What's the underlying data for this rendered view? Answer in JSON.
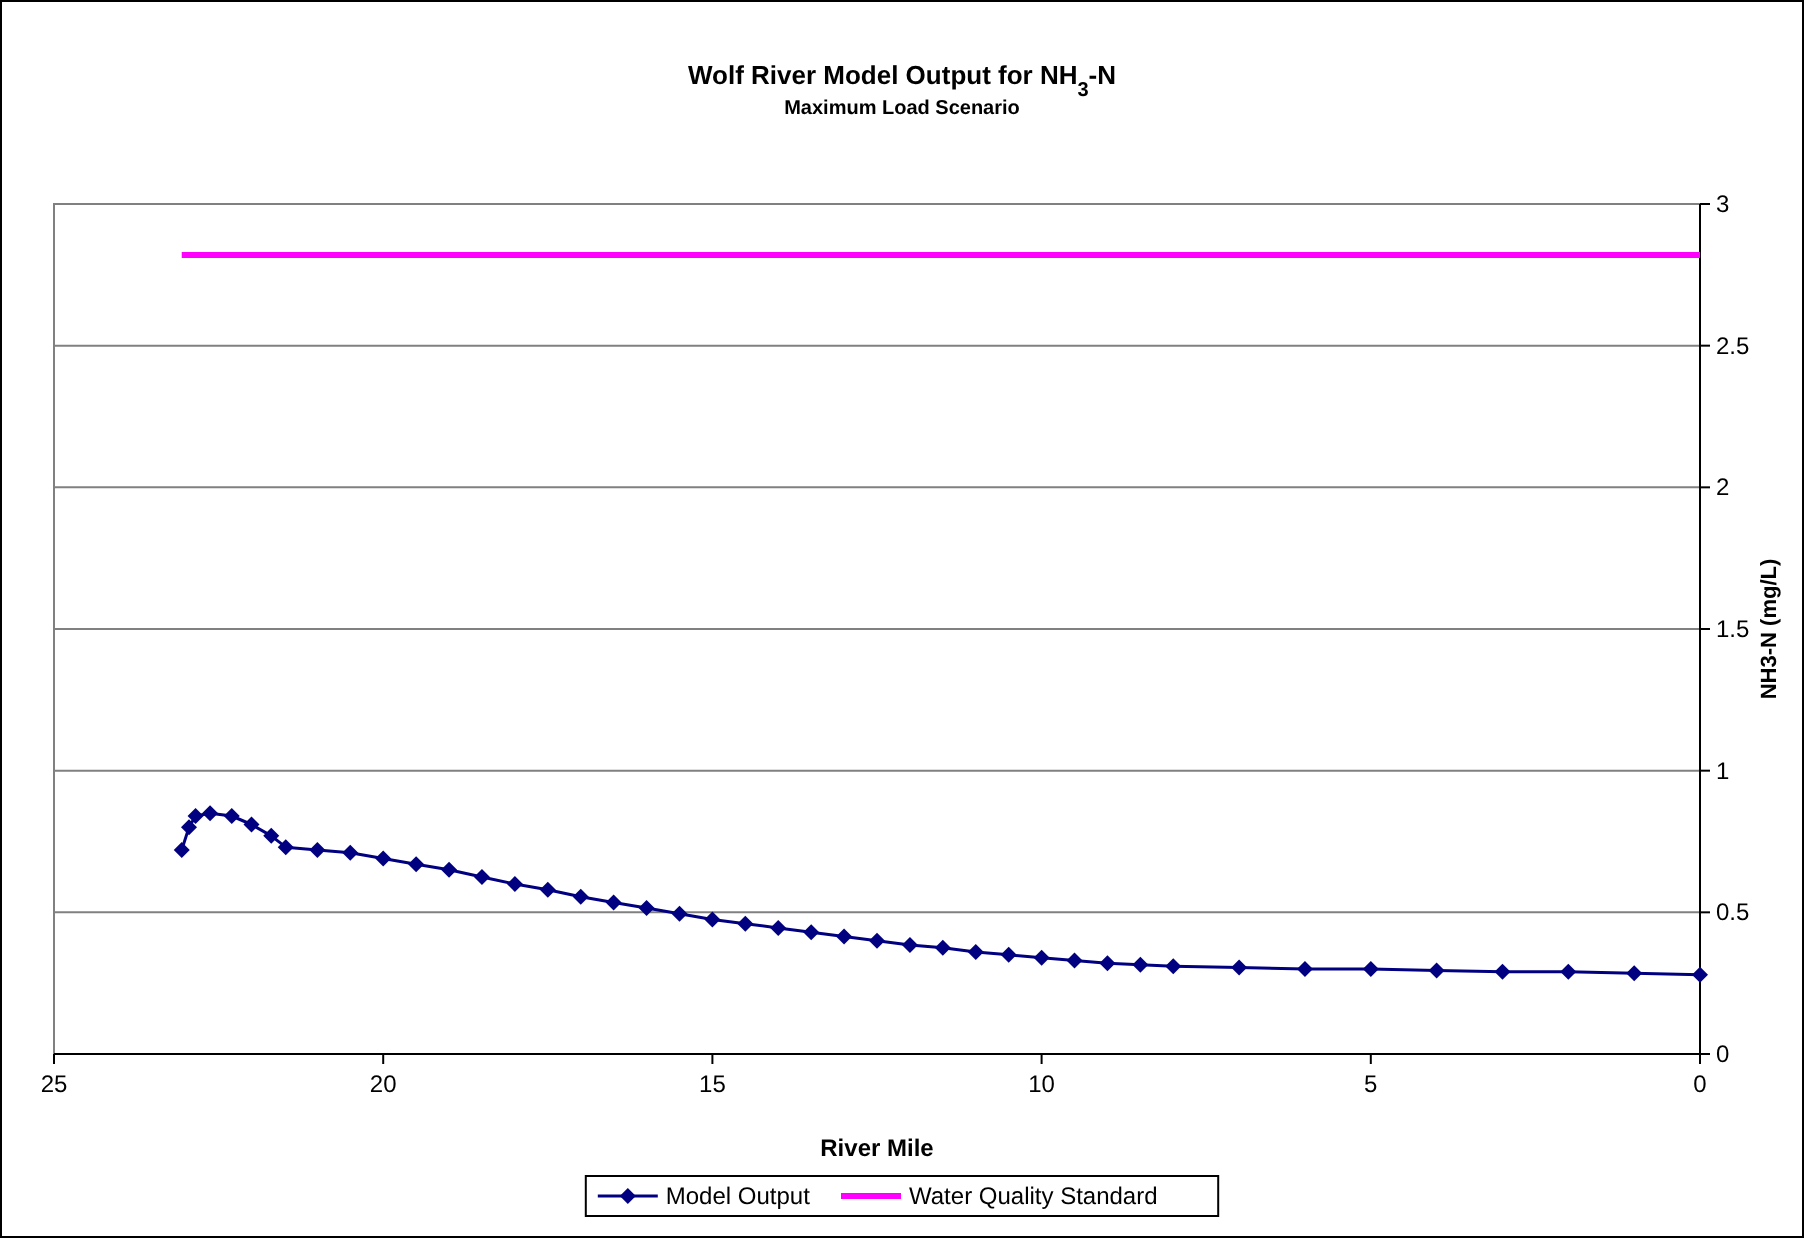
{
  "chart_data": {
    "type": "line",
    "title": "Wolf River Model Output for NH$_{3}$-N",
    "subtitle": "Maximum Load Scenario",
    "xlabel": "River Mile",
    "ylabel": "NH3-N (mg/L)",
    "xlim": [
      25,
      0
    ],
    "xticks": [
      25,
      20,
      15,
      10,
      5,
      0
    ],
    "ylim": [
      0,
      3
    ],
    "yticks": [
      0,
      0.5,
      1,
      1.5,
      2,
      2.5,
      3
    ],
    "grid": "y",
    "legend": "bottom",
    "marker": "diamond",
    "line_style": "solid",
    "series": [
      {
        "name": "Model Output",
        "color": "#000080",
        "x": [
          23.06,
          22.95,
          22.85,
          22.63,
          22.3,
          22.0,
          21.7,
          21.48,
          21.0,
          20.5,
          20.0,
          19.5,
          19.0,
          18.5,
          18.0,
          17.5,
          17.0,
          16.5,
          16.0,
          15.5,
          15.0,
          14.5,
          14.0,
          13.5,
          13.0,
          12.5,
          12.0,
          11.5,
          11.0,
          10.5,
          10.0,
          9.5,
          9.0,
          8.5,
          8.0,
          7.0,
          6.0,
          5.0,
          4.0,
          3.0,
          2.0,
          1.0,
          0.0
        ],
        "values": [
          0.72,
          0.8,
          0.84,
          0.85,
          0.84,
          0.81,
          0.77,
          0.73,
          0.72,
          0.71,
          0.69,
          0.67,
          0.65,
          0.625,
          0.6,
          0.58,
          0.555,
          0.535,
          0.515,
          0.495,
          0.475,
          0.46,
          0.445,
          0.43,
          0.415,
          0.4,
          0.385,
          0.375,
          0.36,
          0.35,
          0.34,
          0.33,
          0.32,
          0.315,
          0.31,
          0.305,
          0.3,
          0.3,
          0.295,
          0.29,
          0.29,
          0.285,
          0.28
        ]
      },
      {
        "name": "Water Quality Standard",
        "color": "#ff00ff",
        "type": "line",
        "marker": "none",
        "x": [
          23.06,
          0
        ],
        "values": [
          2.82,
          2.82
        ]
      }
    ]
  }
}
